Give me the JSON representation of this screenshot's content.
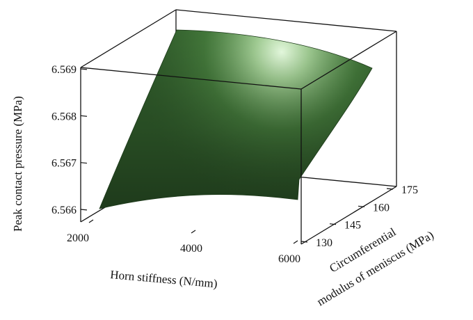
{
  "chart_data": {
    "type": "surface",
    "xlabel": "Horn stiffness (N/mm)",
    "ylabel_lines": [
      "Circumferential",
      "modulus of meniscus (MPa)"
    ],
    "zlabel": "Peak contact pressure (MPa)",
    "x_ticks": [
      "2000",
      "4000",
      "6000"
    ],
    "y_ticks": [
      "130",
      "145",
      "160",
      "175"
    ],
    "z_ticks": [
      "6.566",
      "6.567",
      "6.568",
      "6.569"
    ],
    "xlim": [
      2000,
      6000
    ],
    "ylim": [
      130,
      175
    ],
    "zlim": [
      6.566,
      6.569
    ],
    "surface_color": "#2f5a2a",
    "highlight_color": "#e9ffe0",
    "corners": [
      {
        "x": 2000,
        "y": 130,
        "z": 6.566
      },
      {
        "x": 6000,
        "y": 130,
        "z": 6.5663
      },
      {
        "x": 2000,
        "y": 175,
        "z": 6.5692
      },
      {
        "x": 6000,
        "y": 175,
        "z": 6.5688
      }
    ]
  }
}
